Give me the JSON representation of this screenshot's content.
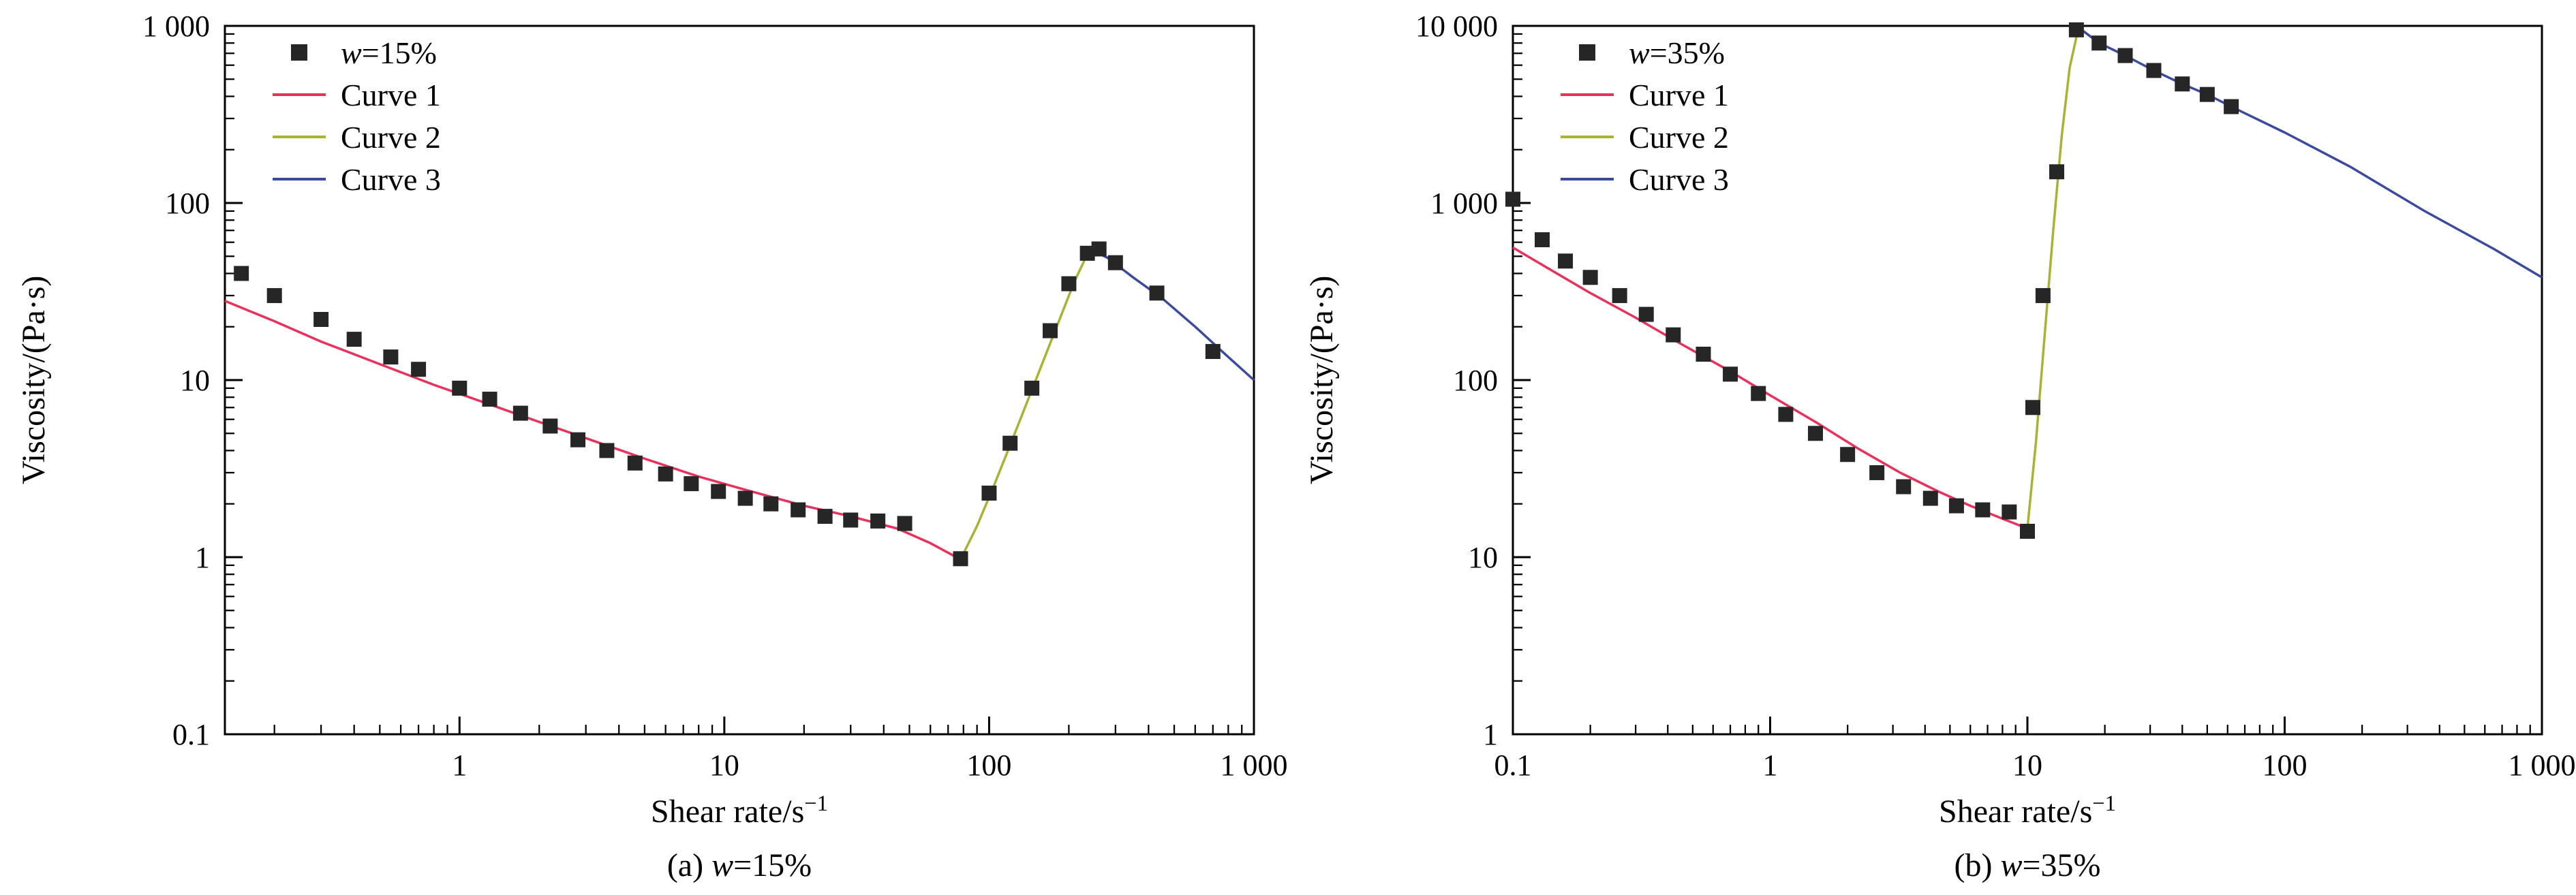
{
  "colors": {
    "curve1": "#e8315b",
    "curve2": "#a9b233",
    "curve3": "#3c4a9e",
    "marker": "#262626",
    "axis": "#000000"
  },
  "figure": {
    "charts": [
      {
        "ylabel": "Viscosity/(Pa·s)",
        "xlabel_base": "Shear rate/s",
        "xlabel_sup": "−1",
        "caption_prefix": "(a) ",
        "caption_var": "w",
        "caption_suffix": "=15%"
      },
      {
        "ylabel": "Viscosity/(Pa·s)",
        "xlabel_base": "Shear rate/s",
        "xlabel_sup": "−1",
        "caption_prefix": "(b) ",
        "caption_var": "w",
        "caption_suffix": "=35%"
      }
    ]
  },
  "chart_data": [
    {
      "type": "scatter+line",
      "title": "",
      "xlabel": "Shear rate/s⁻¹",
      "ylabel": "Viscosity/(Pa·s)",
      "xscale": "log",
      "yscale": "log",
      "xlim": [
        0.13,
        1000
      ],
      "ylim": [
        0.1,
        1000
      ],
      "x_ticks": [
        {
          "v": 1,
          "l": "1"
        },
        {
          "v": 10,
          "l": "10"
        },
        {
          "v": 100,
          "l": "100"
        },
        {
          "v": 1000,
          "l": "1 000"
        }
      ],
      "y_ticks": [
        {
          "v": 0.1,
          "l": "0.1"
        },
        {
          "v": 1,
          "l": "1"
        },
        {
          "v": 10,
          "l": "10"
        },
        {
          "v": 100,
          "l": "100"
        },
        {
          "v": 1000,
          "l": "1 000"
        }
      ],
      "legend": [
        {
          "swatch": "marker",
          "var": "w",
          "label": "=15%"
        },
        {
          "swatch": "line",
          "color": "curve1",
          "label": "Curve 1"
        },
        {
          "swatch": "line",
          "color": "curve2",
          "label": "Curve 2"
        },
        {
          "swatch": "line",
          "color": "curve3",
          "label": "Curve 3"
        }
      ],
      "scatter": {
        "name": "w=15%",
        "x": [
          0.15,
          0.2,
          0.3,
          0.4,
          0.55,
          0.7,
          1.0,
          1.3,
          1.7,
          2.2,
          2.8,
          3.6,
          4.6,
          6.0,
          7.5,
          9.5,
          12,
          15,
          19,
          24,
          30,
          38,
          48,
          78,
          100,
          120,
          145,
          170,
          200,
          235,
          260,
          300,
          430,
          700
        ],
        "y": [
          40,
          30,
          22,
          17,
          13.5,
          11.5,
          9.0,
          7.8,
          6.5,
          5.5,
          4.6,
          4.0,
          3.4,
          2.95,
          2.6,
          2.35,
          2.15,
          2.0,
          1.85,
          1.7,
          1.62,
          1.6,
          1.55,
          0.98,
          2.3,
          4.4,
          9,
          19,
          35,
          52,
          55,
          46,
          31,
          14.5
        ]
      },
      "curves": [
        {
          "name": "Curve 1",
          "color": "curve1",
          "points": [
            [
              0.13,
              28
            ],
            [
              0.2,
              21.5
            ],
            [
              0.3,
              16.5
            ],
            [
              0.5,
              12.3
            ],
            [
              0.8,
              9.4
            ],
            [
              1.2,
              7.6
            ],
            [
              2,
              5.8
            ],
            [
              3,
              4.7
            ],
            [
              5,
              3.6
            ],
            [
              8,
              2.85
            ],
            [
              12,
              2.4
            ],
            [
              20,
              1.95
            ],
            [
              30,
              1.7
            ],
            [
              45,
              1.45
            ],
            [
              60,
              1.2
            ],
            [
              78,
              0.97
            ]
          ]
        },
        {
          "name": "Curve 2",
          "color": "curve2",
          "points": [
            [
              78,
              0.97
            ],
            [
              90,
              1.5
            ],
            [
              105,
              2.6
            ],
            [
              125,
              5
            ],
            [
              150,
              10
            ],
            [
              180,
              20
            ],
            [
              210,
              36
            ],
            [
              240,
              55
            ]
          ]
        },
        {
          "name": "Curve 3",
          "color": "curve3",
          "points": [
            [
              240,
              55
            ],
            [
              280,
              49
            ],
            [
              350,
              38
            ],
            [
              450,
              29
            ],
            [
              600,
              20
            ],
            [
              800,
              13.5
            ],
            [
              1000,
              10
            ]
          ]
        }
      ]
    },
    {
      "type": "scatter+line",
      "title": "",
      "xlabel": "Shear rate/s⁻¹",
      "ylabel": "Viscosity/(Pa·s)",
      "xscale": "log",
      "yscale": "log",
      "xlim": [
        0.1,
        1000
      ],
      "ylim": [
        1,
        10000
      ],
      "x_ticks": [
        {
          "v": 0.1,
          "l": "0.1"
        },
        {
          "v": 1,
          "l": "1"
        },
        {
          "v": 10,
          "l": "10"
        },
        {
          "v": 100,
          "l": "100"
        },
        {
          "v": 1000,
          "l": "1 000"
        }
      ],
      "y_ticks": [
        {
          "v": 1,
          "l": "1"
        },
        {
          "v": 10,
          "l": "10"
        },
        {
          "v": 100,
          "l": "100"
        },
        {
          "v": 1000,
          "l": "1 000"
        },
        {
          "v": 10000,
          "l": "10 000"
        }
      ],
      "legend": [
        {
          "swatch": "marker",
          "var": "w",
          "label": "=35%"
        },
        {
          "swatch": "line",
          "color": "curve1",
          "label": "Curve 1"
        },
        {
          "swatch": "line",
          "color": "curve2",
          "label": "Curve 2"
        },
        {
          "swatch": "line",
          "color": "curve3",
          "label": "Curve 3"
        }
      ],
      "scatter": {
        "name": "w=35%",
        "x": [
          0.1,
          0.13,
          0.16,
          0.2,
          0.26,
          0.33,
          0.42,
          0.55,
          0.7,
          0.9,
          1.15,
          1.5,
          2.0,
          2.6,
          3.3,
          4.2,
          5.3,
          6.7,
          8.5,
          10,
          10.5,
          11.5,
          13,
          15.5,
          19,
          24,
          31,
          40,
          50,
          62
        ],
        "y": [
          1050,
          620,
          470,
          380,
          300,
          235,
          180,
          140,
          108,
          84,
          64,
          50,
          38,
          30,
          25,
          21.5,
          19.5,
          18.5,
          18,
          14,
          70,
          300,
          1500,
          9500,
          8000,
          6800,
          5600,
          4700,
          4100,
          3500
        ]
      },
      "curves": [
        {
          "name": "Curve 1",
          "color": "curve1",
          "points": [
            [
              0.1,
              560
            ],
            [
              0.14,
              420
            ],
            [
              0.2,
              310
            ],
            [
              0.3,
              225
            ],
            [
              0.45,
              160
            ],
            [
              0.7,
              112
            ],
            [
              1.0,
              82
            ],
            [
              1.5,
              58
            ],
            [
              2.2,
              41
            ],
            [
              3.2,
              30
            ],
            [
              4.5,
              23.5
            ],
            [
              6,
              19.5
            ],
            [
              8,
              16.5
            ],
            [
              10,
              14.5
            ]
          ]
        },
        {
          "name": "Curve 2",
          "color": "curve2",
          "points": [
            [
              10,
              14.5
            ],
            [
              10.8,
              45
            ],
            [
              11.6,
              160
            ],
            [
              12.6,
              700
            ],
            [
              13.6,
              2400
            ],
            [
              14.6,
              5800
            ],
            [
              15.8,
              9800
            ]
          ]
        },
        {
          "name": "Curve 3",
          "color": "curve3",
          "points": [
            [
              15.8,
              9800
            ],
            [
              19,
              8000
            ],
            [
              24,
              6800
            ],
            [
              31,
              5600
            ],
            [
              40,
              4700
            ],
            [
              50,
              4100
            ],
            [
              62,
              3500
            ],
            [
              100,
              2500
            ],
            [
              180,
              1600
            ],
            [
              350,
              900
            ],
            [
              650,
              550
            ],
            [
              1000,
              380
            ]
          ]
        }
      ]
    }
  ]
}
